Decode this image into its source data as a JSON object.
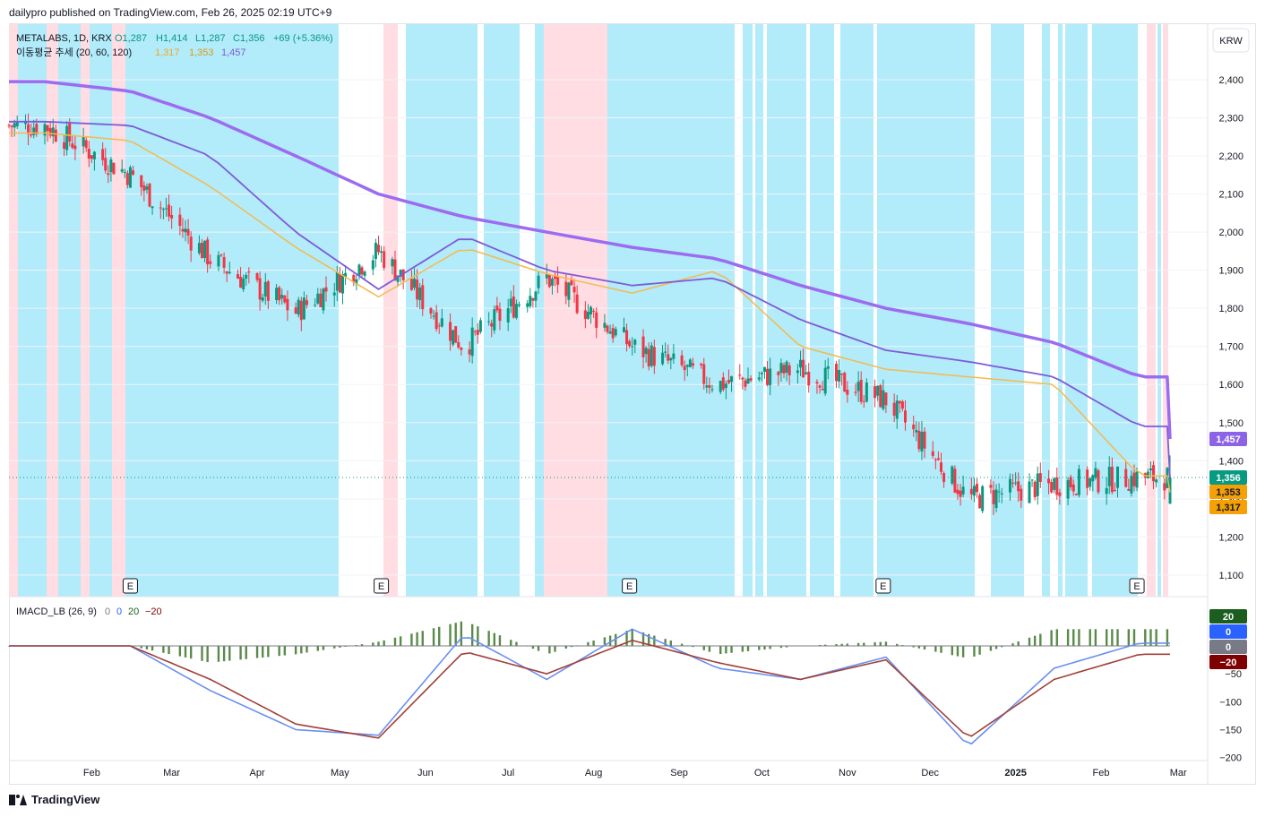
{
  "header": {
    "text": "dailypro published on TradingView.com, Feb 26, 2025 02:19 UTC+9"
  },
  "currency_button": "KRW",
  "symbol_line": {
    "ticker": "METALABS, 1D, KRX",
    "open": "O1,287",
    "high": "H1,414",
    "low": "L1,287",
    "close": "C1,356",
    "change": "+69 (+5.36%)"
  },
  "ma_legend": {
    "name": "이동평균 추세 (20, 60, 120)",
    "v20": "1,317",
    "v60": "1,353",
    "v120": "1,457"
  },
  "macd_legend": {
    "name": "IMACD_LB (26, 9)",
    "v1": "0",
    "v2": "0",
    "v3": "20",
    "v4": "−20"
  },
  "price_scale": [
    "2,400",
    "2,300",
    "2,200",
    "2,100",
    "2,000",
    "1,900",
    "1,800",
    "1,700",
    "1,600",
    "1,500",
    "1,400",
    "1,300",
    "1,200",
    "1,100"
  ],
  "macd_scale": [
    "−50",
    "−100",
    "−150",
    "−200"
  ],
  "price_tags": {
    "last": "1,356",
    "ma120": "1,457",
    "ma60": "1,353",
    "ma20": "1,317"
  },
  "macd_tags": {
    "t20": "20",
    "t0a": "0",
    "t0b": "0",
    "tm20": "−20"
  },
  "time_axis": [
    "Feb",
    "Mar",
    "Apr",
    "May",
    "Jun",
    "Jul",
    "Aug",
    "Sep",
    "Oct",
    "Nov",
    "Dec",
    "2025",
    "Feb",
    "Mar"
  ],
  "earnings_marker": "E",
  "footer": {
    "brand": "TradingView"
  },
  "colors": {
    "up": "#089981",
    "down": "#f23645",
    "cyan_zone": "#b2ebf9",
    "pink_zone": "#ffdde3",
    "ma120": "#9b6cf0",
    "ma60": "#7e5bd8",
    "ma20_up": "#f5b94c",
    "ma20_down": "#e01919",
    "macd": "#6b8ff0",
    "signal": "#a04038",
    "hist": "#5a8a4a"
  },
  "chart_data": {
    "type": "candlestick",
    "symbol": "METALABS",
    "interval": "1D",
    "exchange": "KRX",
    "currency": "KRW",
    "ylim": [
      1050,
      2450
    ],
    "x_range": [
      "2024-01-02",
      "2025-02-26"
    ],
    "last_bar": {
      "open": 1287,
      "high": 1414,
      "low": 1287,
      "close": 1356,
      "change": 69,
      "change_pct": 5.36
    },
    "series": [
      {
        "name": "20",
        "last": 1317,
        "monthly": [
          2260,
          2240,
          2120,
          1960,
          1830,
          1960,
          1890,
          1840,
          1900,
          1700,
          1640,
          1620,
          1600,
          1360,
          1340,
          1320,
          1317
        ]
      },
      {
        "name": "60",
        "last": 1353,
        "monthly": [
          2290,
          2280,
          2200,
          2000,
          1850,
          1990,
          1900,
          1860,
          1880,
          1770,
          1690,
          1660,
          1620,
          1490,
          1390,
          1360,
          1353
        ]
      },
      {
        "name": "120",
        "last": 1457,
        "monthly": [
          2395,
          2370,
          2300,
          2200,
          2100,
          2040,
          2000,
          1960,
          1930,
          1860,
          1800,
          1760,
          1710,
          1620,
          1520,
          1480,
          1457
        ]
      }
    ],
    "close_monthly": {
      "months": [
        "2024-01",
        "2024-02",
        "2024-03",
        "2024-04",
        "2024-05",
        "2024-06",
        "2024-07",
        "2024-08",
        "2024-09",
        "2024-10",
        "2024-11",
        "2024-12",
        "2025-01",
        "2025-02"
      ],
      "values": [
        2280,
        2150,
        1930,
        1790,
        1950,
        1700,
        1880,
        1700,
        1600,
        1640,
        1560,
        1300,
        1340,
        1356
      ]
    },
    "events": [
      {
        "label": "E",
        "date": "2024-02-15"
      },
      {
        "label": "E",
        "date": "2024-05-16"
      },
      {
        "label": "E",
        "date": "2024-08-14"
      },
      {
        "label": "E",
        "date": "2024-11-14"
      },
      {
        "label": "E",
        "date": "2025-02-14"
      }
    ],
    "macd": {
      "name": "IMACD_LB (26, 9)",
      "ylim": [
        -200,
        25
      ],
      "macd_monthly": [
        0,
        0,
        -80,
        -150,
        -160,
        20,
        -60,
        30,
        -40,
        -60,
        -20,
        -180,
        -40,
        5
      ],
      "signal_monthly": [
        0,
        0,
        -60,
        -140,
        -165,
        -10,
        -50,
        10,
        -30,
        -60,
        -25,
        -165,
        -60,
        -15
      ]
    }
  }
}
